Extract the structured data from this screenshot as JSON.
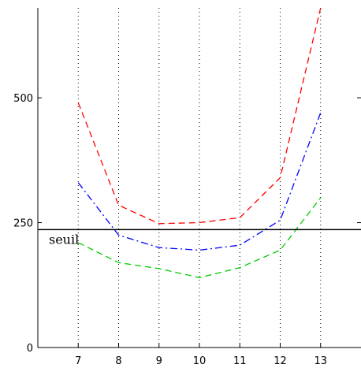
{
  "chart_data": {
    "type": "line",
    "title": "",
    "xlabel": "",
    "ylabel": "",
    "x": [
      7,
      8,
      9,
      10,
      11,
      12,
      13
    ],
    "xlim": [
      6,
      14
    ],
    "ylim": [
      0,
      680
    ],
    "x_ticks": [
      7,
      8,
      9,
      10,
      11,
      12,
      13
    ],
    "y_ticks": [
      0,
      250,
      500
    ],
    "grid": "vertical dotted lines at x ticks",
    "series": [
      {
        "color": "#ff0000",
        "style": "dashed",
        "values": [
          490,
          285,
          248,
          250,
          260,
          340,
          680
        ]
      },
      {
        "color": "#0000ff",
        "style": "dash-dot",
        "values": [
          330,
          225,
          200,
          195,
          205,
          255,
          470
        ]
      },
      {
        "color": "#00cc00",
        "style": "dashed",
        "values": [
          210,
          170,
          158,
          140,
          160,
          195,
          300
        ]
      }
    ],
    "threshold": {
      "label": "seuil",
      "value": 236
    }
  }
}
